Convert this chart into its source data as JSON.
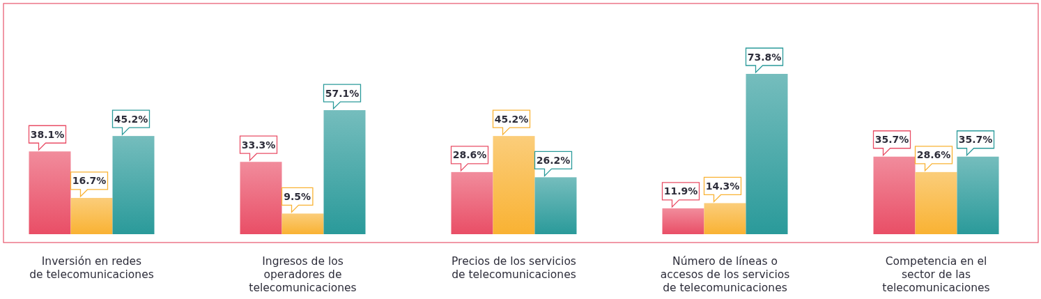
{
  "chart_data": {
    "type": "bar",
    "categories": [
      "Inversión en redes\nde telecomunicaciones",
      "Ingresos de los\noperadores de\ntelecomunicaciones",
      "Precios de los servicios\nde telecomunicaciones",
      "Número de líneas o\naccesos de los servicios\nde telecomunicaciones",
      "Competencia en el\nsector de las\ntelecomunicaciones"
    ],
    "series": [
      {
        "color": "#e94e66",
        "values": [
          38.1,
          33.3,
          28.6,
          11.9,
          35.7
        ],
        "value_labels": [
          "38.1%",
          "33.3%",
          "28.6%",
          "11.9%",
          "35.7%"
        ]
      },
      {
        "color": "#f9b233",
        "values": [
          16.7,
          9.5,
          45.2,
          14.3,
          28.6
        ],
        "value_labels": [
          "16.7%",
          "9.5%",
          "45.2%",
          "14.3%",
          "28.6%"
        ]
      },
      {
        "color": "#2a9a9a",
        "values": [
          45.2,
          57.1,
          26.2,
          73.8,
          35.7
        ],
        "value_labels": [
          "45.2%",
          "57.1%",
          "26.2%",
          "73.8%",
          "35.7%"
        ]
      }
    ]
  }
}
